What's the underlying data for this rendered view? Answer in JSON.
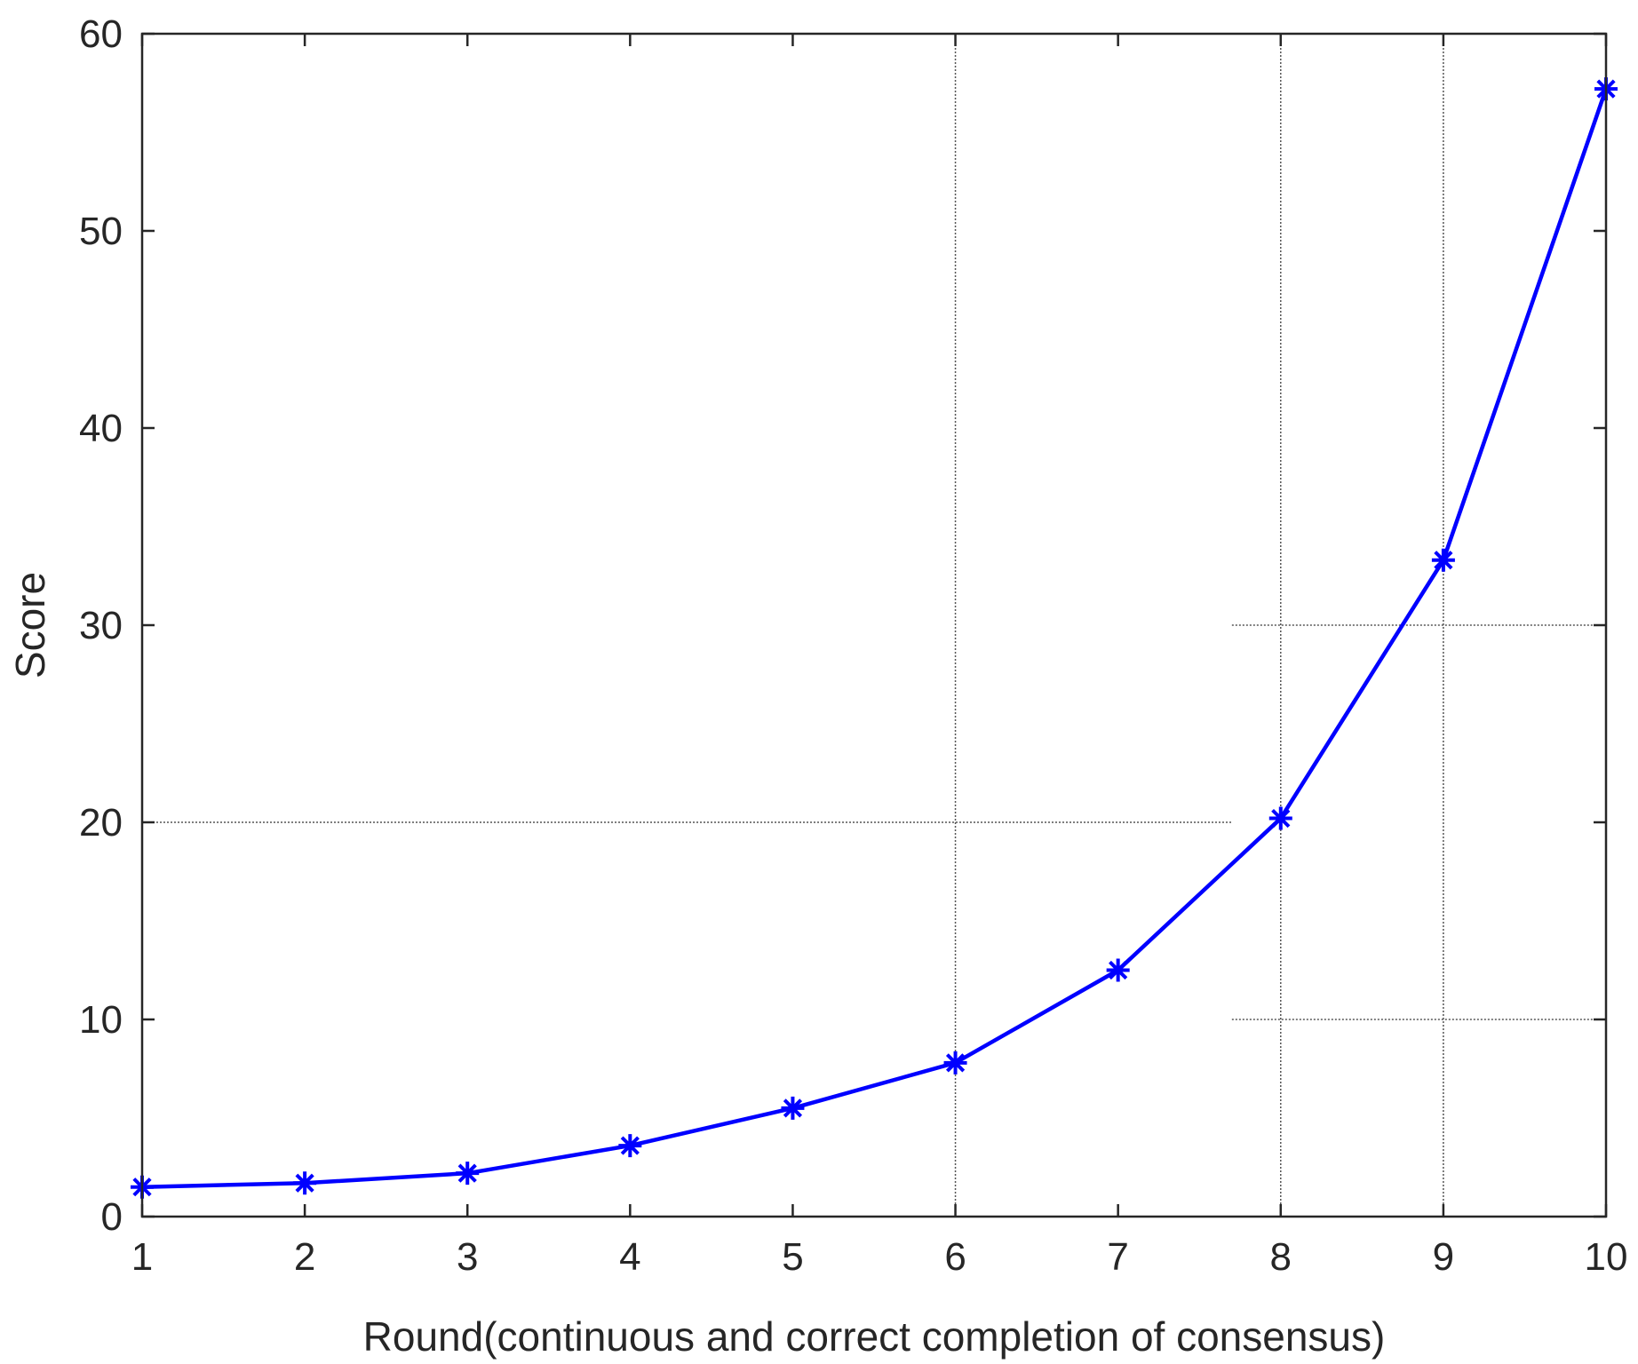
{
  "chart_data": {
    "type": "line",
    "title": "",
    "xlabel": "Round(continuous and correct completion of consensus)",
    "ylabel": "Score",
    "xlim": [
      1,
      10
    ],
    "ylim": [
      0,
      60
    ],
    "x_ticks": [
      "1",
      "2",
      "3",
      "4",
      "5",
      "6",
      "7",
      "8",
      "9",
      "10"
    ],
    "y_ticks": [
      "0",
      "10",
      "20",
      "30",
      "40",
      "50",
      "60"
    ],
    "grid": "partial dotted reference lines",
    "reference_lines": {
      "vertical": [
        6,
        8,
        9
      ],
      "horizontal": [
        {
          "y": 20,
          "x_from": 1,
          "x_to": 7.7
        },
        {
          "y": 30,
          "x_from": 7.7,
          "x_to": 10
        },
        {
          "y": 10,
          "x_from": 7.7,
          "x_to": 10
        }
      ]
    },
    "series": [
      {
        "marker": "asterisk",
        "color": "#0000ff",
        "x": [
          1,
          2,
          3,
          4,
          5,
          6,
          7,
          8,
          9,
          10
        ],
        "y": [
          1.5,
          1.7,
          2.2,
          3.6,
          5.5,
          7.8,
          12.5,
          20.2,
          33.3,
          57.2
        ]
      }
    ]
  }
}
